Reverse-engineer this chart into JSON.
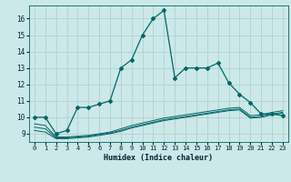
{
  "title": "",
  "xlabel": "Humidex (Indice chaleur)",
  "ylabel": "",
  "bg_color": "#cce8e8",
  "grid_color": "#aacccc",
  "line_color": "#006666",
  "xlim": [
    -0.5,
    23.5
  ],
  "ylim": [
    8.5,
    16.8
  ],
  "yticks": [
    9,
    10,
    11,
    12,
    13,
    14,
    15,
    16
  ],
  "xticks": [
    0,
    1,
    2,
    3,
    4,
    5,
    6,
    7,
    8,
    9,
    10,
    11,
    12,
    13,
    14,
    15,
    16,
    17,
    18,
    19,
    20,
    21,
    22,
    23
  ],
  "series": [
    {
      "x": [
        0,
        1,
        2,
        3,
        4,
        5,
        6,
        7,
        8,
        9,
        10,
        11,
        12,
        13,
        14,
        15,
        16,
        17,
        18,
        19,
        20,
        21,
        22,
        23
      ],
      "y": [
        10.0,
        10.0,
        9.0,
        9.2,
        10.6,
        10.6,
        10.8,
        11.0,
        13.0,
        13.5,
        15.0,
        16.0,
        16.5,
        12.4,
        13.0,
        13.0,
        13.0,
        13.3,
        12.1,
        11.4,
        10.9,
        10.2,
        10.2,
        10.1
      ],
      "marker": "D",
      "markersize": 2.0,
      "linewidth": 0.9
    },
    {
      "x": [
        0,
        1,
        2,
        3,
        4,
        5,
        6,
        7,
        8,
        9,
        10,
        11,
        12,
        13,
        14,
        15,
        16,
        17,
        18,
        19,
        20,
        21,
        22,
        23
      ],
      "y": [
        9.6,
        9.5,
        8.8,
        8.8,
        8.85,
        8.9,
        9.0,
        9.1,
        9.3,
        9.5,
        9.65,
        9.8,
        9.95,
        10.05,
        10.15,
        10.25,
        10.35,
        10.45,
        10.55,
        10.6,
        10.1,
        10.15,
        10.3,
        10.4
      ],
      "marker": null,
      "markersize": 0,
      "linewidth": 0.7
    },
    {
      "x": [
        0,
        1,
        2,
        3,
        4,
        5,
        6,
        7,
        8,
        9,
        10,
        11,
        12,
        13,
        14,
        15,
        16,
        17,
        18,
        19,
        20,
        21,
        22,
        23
      ],
      "y": [
        9.4,
        9.3,
        8.75,
        8.75,
        8.8,
        8.85,
        8.95,
        9.05,
        9.2,
        9.4,
        9.55,
        9.7,
        9.85,
        9.95,
        10.05,
        10.15,
        10.25,
        10.35,
        10.45,
        10.5,
        10.0,
        10.05,
        10.2,
        10.3
      ],
      "marker": null,
      "markersize": 0,
      "linewidth": 0.7
    },
    {
      "x": [
        0,
        1,
        2,
        3,
        4,
        5,
        6,
        7,
        8,
        9,
        10,
        11,
        12,
        13,
        14,
        15,
        16,
        17,
        18,
        19,
        20,
        21,
        22,
        23
      ],
      "y": [
        9.2,
        9.1,
        8.7,
        8.7,
        8.75,
        8.8,
        8.9,
        9.0,
        9.15,
        9.35,
        9.5,
        9.65,
        9.8,
        9.9,
        10.0,
        10.1,
        10.2,
        10.3,
        10.4,
        10.45,
        9.95,
        10.0,
        10.15,
        10.25
      ],
      "marker": null,
      "markersize": 0,
      "linewidth": 0.7
    }
  ]
}
